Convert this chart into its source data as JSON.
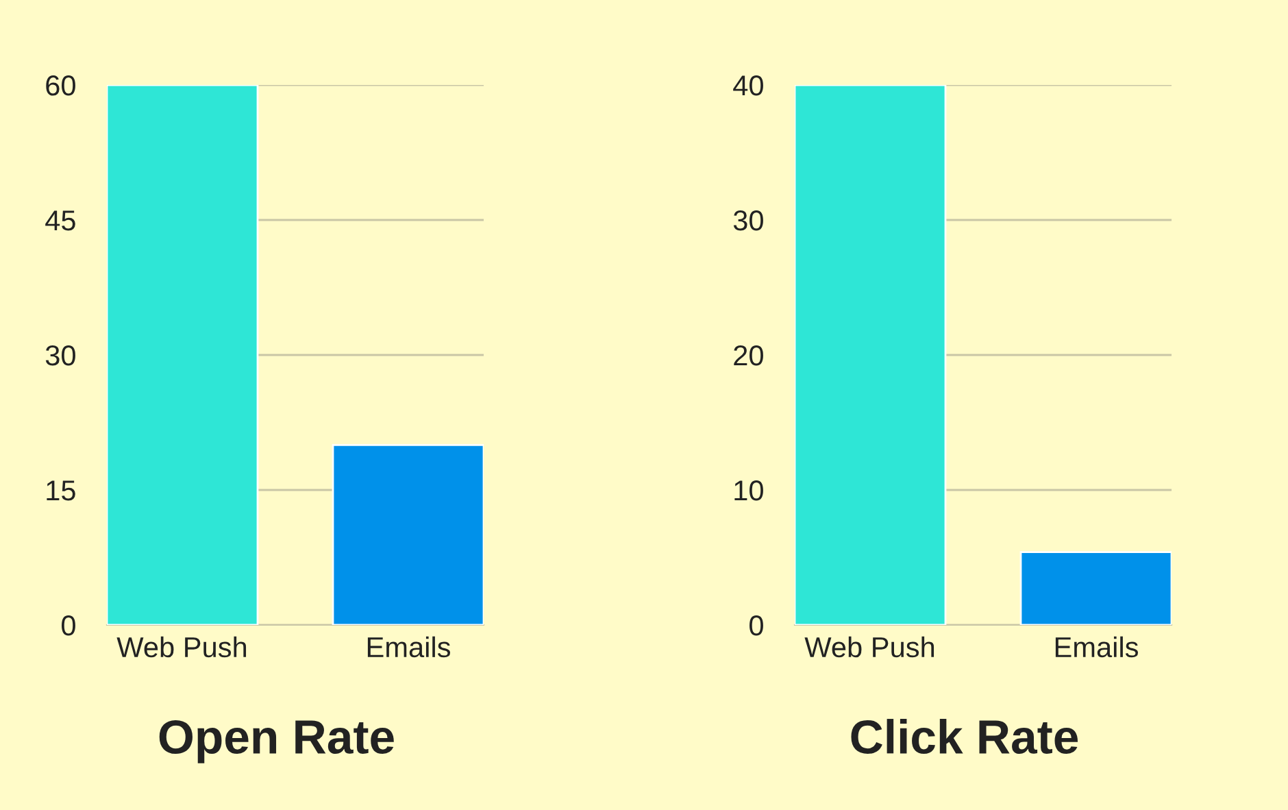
{
  "chart_data": [
    {
      "type": "bar",
      "title": "Open Rate",
      "categories": [
        "Web Push",
        "Emails"
      ],
      "values": [
        60,
        20
      ],
      "colors": [
        "#2ee6d6",
        "#0091ea"
      ],
      "ylim": [
        0,
        60
      ],
      "yticks": [
        0,
        15,
        30,
        45,
        60
      ],
      "grid": "y"
    },
    {
      "type": "bar",
      "title": "Click Rate",
      "categories": [
        "Web Push",
        "Emails"
      ],
      "values": [
        40,
        5.4
      ],
      "colors": [
        "#2ee6d6",
        "#0091ea"
      ],
      "ylim": [
        0,
        40
      ],
      "yticks": [
        0,
        10,
        20,
        30,
        40
      ],
      "grid": "y"
    }
  ]
}
